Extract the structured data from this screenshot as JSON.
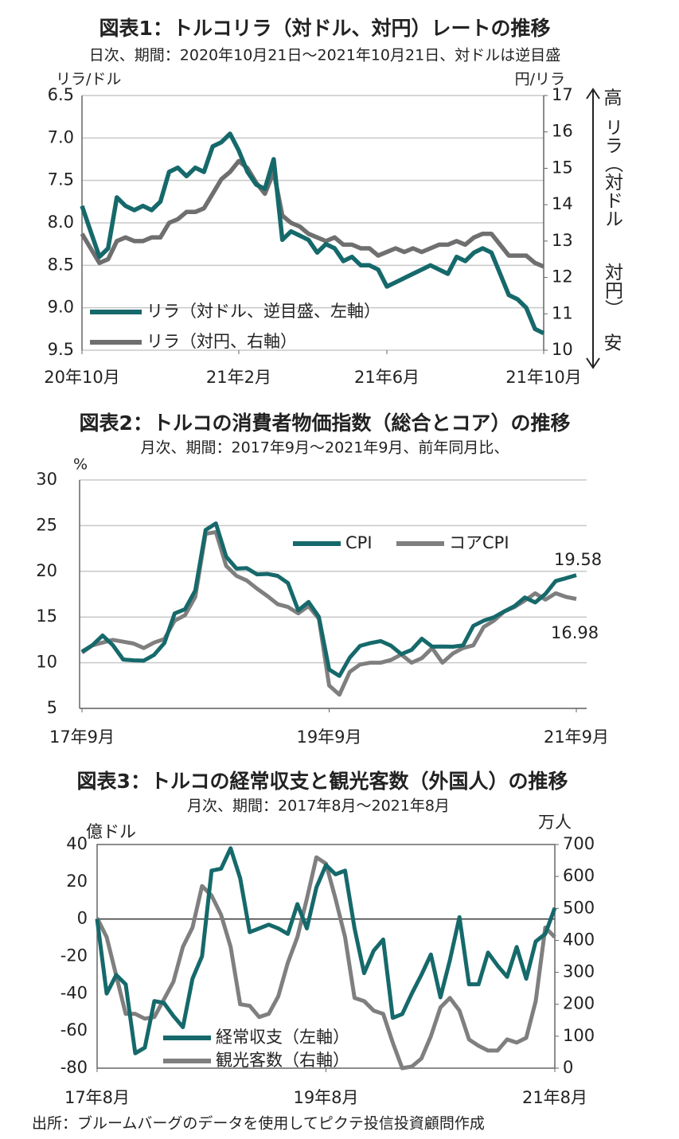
{
  "chart_data": [
    {
      "type": "line",
      "title": "図表1：トルコリラ（対ドル、対円）レートの推移",
      "subtitle": "日次、期間：2020年10月21日～2021年10月21日、対ドルは逆目盛",
      "y_label": "リラ/ドル",
      "y2_label": "円/リラ",
      "annotations": [
        "高",
        "リラ（対ドル",
        "対円）",
        "安"
      ],
      "categories": [
        "20年10月",
        null,
        null,
        null,
        null,
        null,
        null,
        null,
        null,
        null,
        null,
        null,
        null,
        null,
        null,
        null,
        null,
        null,
        "21年2月",
        null,
        null,
        null,
        null,
        null,
        null,
        null,
        null,
        null,
        null,
        null,
        null,
        null,
        null,
        null,
        null,
        "21年6月",
        null,
        null,
        null,
        null,
        null,
        null,
        null,
        null,
        null,
        null,
        null,
        null,
        null,
        null,
        null,
        null,
        null,
        "21年10月"
      ],
      "series": [
        {
          "name": "リラ（対ドル、逆目盛、左軸）",
          "color": "#16696b",
          "values": [
            7.8,
            8.1,
            8.4,
            8.3,
            7.7,
            7.8,
            7.85,
            7.8,
            7.85,
            7.75,
            7.4,
            7.35,
            7.45,
            7.35,
            7.4,
            7.1,
            7.05,
            6.95,
            7.15,
            7.4,
            7.55,
            7.6,
            7.25,
            8.2,
            8.1,
            8.15,
            8.2,
            8.35,
            8.25,
            8.3,
            8.45,
            8.4,
            8.5,
            8.5,
            8.55,
            8.75,
            8.7,
            8.65,
            8.6,
            8.55,
            8.5,
            8.55,
            8.6,
            8.4,
            8.45,
            8.35,
            8.3,
            8.35,
            8.6,
            8.85,
            8.9,
            9.0,
            9.25,
            9.3
          ]
        },
        {
          "name": "リラ（対円、右軸）",
          "color": "#6f6f6f",
          "axis": "y2",
          "values": [
            13.2,
            12.8,
            12.4,
            12.5,
            13.0,
            13.1,
            13.0,
            13.0,
            13.1,
            13.1,
            13.5,
            13.6,
            13.8,
            13.8,
            13.9,
            14.3,
            14.7,
            14.9,
            15.2,
            15.0,
            14.6,
            14.3,
            14.9,
            13.7,
            13.5,
            13.4,
            13.2,
            13.1,
            13.0,
            13.1,
            12.9,
            12.9,
            12.8,
            12.8,
            12.6,
            12.7,
            12.8,
            12.7,
            12.8,
            12.7,
            12.8,
            12.9,
            12.9,
            13.0,
            12.9,
            13.1,
            13.2,
            13.2,
            12.9,
            12.6,
            12.6,
            12.6,
            12.4,
            12.3
          ]
        }
      ],
      "ylim": [
        6.5,
        9.5
      ],
      "y_inverted": true,
      "yticks": [
        6.5,
        {
          "value": 7,
          "label": "7.0"
        },
        7.5,
        {
          "value": 8,
          "label": "8.0"
        },
        8.5,
        {
          "value": 9,
          "label": "9.0"
        },
        9.5
      ],
      "y2lim": [
        10,
        17
      ],
      "y2ticks": [
        10,
        11,
        12,
        13,
        14,
        15,
        16,
        17
      ],
      "grid": true,
      "zero_line": false
    },
    {
      "type": "line",
      "title": "図表2：トルコの消費者物価指数（総合とコア）の推移",
      "subtitle": "月次、期間：2017年9月～2021年9月、前年同月比、",
      "y_label": "%",
      "categories": [
        "17年9月",
        null,
        null,
        null,
        null,
        null,
        null,
        null,
        null,
        null,
        null,
        null,
        null,
        null,
        null,
        null,
        null,
        null,
        null,
        null,
        null,
        null,
        null,
        null,
        "19年9月",
        null,
        null,
        null,
        null,
        null,
        null,
        null,
        null,
        null,
        null,
        null,
        null,
        null,
        null,
        null,
        null,
        null,
        null,
        null,
        null,
        null,
        null,
        null,
        "21年9月"
      ],
      "series": [
        {
          "name": "CPI",
          "color": "#16696b",
          "values": [
            11.2,
            11.9,
            12.98,
            11.92,
            10.35,
            10.26,
            10.23,
            10.85,
            12.15,
            15.39,
            15.85,
            17.9,
            24.52,
            25.24,
            21.62,
            20.3,
            20.35,
            19.67,
            19.71,
            19.5,
            18.71,
            15.72,
            16.65,
            15.01,
            9.26,
            8.55,
            10.56,
            11.84,
            12.15,
            12.37,
            11.86,
            10.94,
            11.39,
            12.62,
            11.76,
            11.77,
            11.75,
            11.89,
            14.03,
            14.6,
            14.97,
            15.61,
            16.19,
            17.14,
            16.59,
            17.53,
            18.95,
            19.25,
            19.58
          ]
        },
        {
          "name": "コアCPI",
          "color": "#7f7f7f",
          "values": [
            11.1,
            11.9,
            12.2,
            12.5,
            12.3,
            12.1,
            11.6,
            12.2,
            12.6,
            14.6,
            15.2,
            17.2,
            24.1,
            24.3,
            20.6,
            19.5,
            19.0,
            18.1,
            17.3,
            16.4,
            16.1,
            15.4,
            16.2,
            14.8,
            7.5,
            6.5,
            9.0,
            9.8,
            10.0,
            10.0,
            10.3,
            10.9,
            10.0,
            10.5,
            11.6,
            10.0,
            11.0,
            11.6,
            11.9,
            13.9,
            14.6,
            15.6,
            16.1,
            16.8,
            17.6,
            16.9,
            17.6,
            17.2,
            16.98
          ]
        }
      ],
      "ylim": [
        5,
        30
      ],
      "yticks": [
        5,
        10,
        15,
        20,
        25,
        30
      ],
      "grid": true,
      "zero_line": false
    },
    {
      "type": "line",
      "title": "図表3：トルコの経常収支と観光客数（外国人）の推移",
      "subtitle": "月次、期間：2017年8月～2021年8月",
      "y_label": "億ドル",
      "y2_label": "万人",
      "categories": [
        "17年8月",
        null,
        null,
        null,
        null,
        null,
        null,
        null,
        null,
        null,
        null,
        null,
        null,
        null,
        null,
        null,
        null,
        null,
        null,
        null,
        null,
        null,
        null,
        null,
        "19年8月",
        null,
        null,
        null,
        null,
        null,
        null,
        null,
        null,
        null,
        null,
        null,
        null,
        null,
        null,
        null,
        null,
        null,
        null,
        null,
        null,
        null,
        null,
        null,
        "21年8月"
      ],
      "series": [
        {
          "name": "経常収支（左軸）",
          "color": "#16696b",
          "values": [
            0,
            -40,
            -30,
            -35,
            -72,
            -69,
            -44,
            -45,
            -52,
            -58,
            -32,
            -20,
            26,
            27,
            38,
            22,
            -7,
            -5,
            -3,
            -5,
            -8,
            8,
            -5,
            17,
            29,
            24,
            26,
            -5,
            -29,
            -17,
            -11,
            -53,
            -51,
            -40,
            -30,
            -19,
            -42,
            -22,
            1,
            -35,
            -35,
            -18,
            -25,
            -31,
            -15,
            -32,
            -12,
            -8,
            6
          ]
        },
        {
          "name": "観光客数（右軸）",
          "color": "#7f7f7f",
          "axis": "y2",
          "values": [
            470,
            410,
            290,
            170,
            170,
            155,
            160,
            215,
            270,
            380,
            440,
            570,
            540,
            480,
            380,
            200,
            195,
            160,
            170,
            225,
            330,
            410,
            530,
            660,
            640,
            530,
            410,
            220,
            210,
            180,
            170,
            80,
            0,
            5,
            30,
            100,
            190,
            220,
            180,
            90,
            70,
            55,
            55,
            90,
            80,
            95,
            210,
            440,
            410
          ]
        }
      ],
      "ylim": [
        -80,
        40
      ],
      "yticks": [
        -80,
        -60,
        -40,
        -20,
        0,
        20,
        40
      ],
      "y2lim": [
        0,
        700
      ],
      "y2ticks": [
        0,
        100,
        200,
        300,
        400,
        500,
        600,
        700
      ],
      "grid": false,
      "zero_line": true
    }
  ],
  "source": "出所：ブルームバーグのデータを使用してピクテ投信投資顧問作成"
}
